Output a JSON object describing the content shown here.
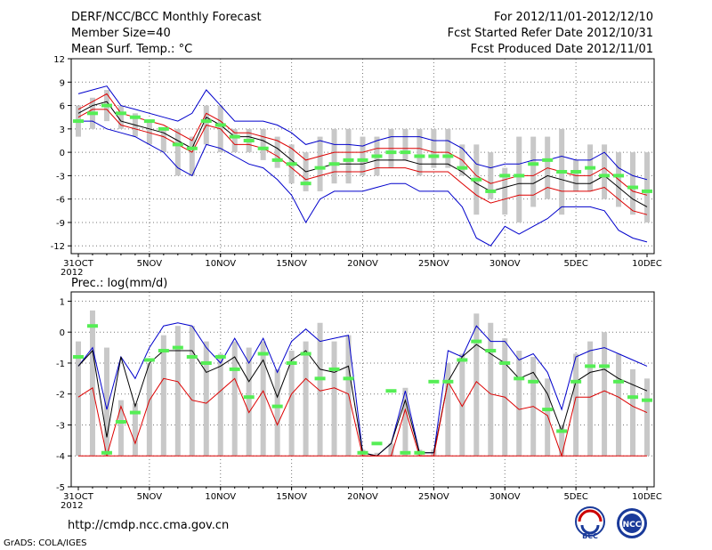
{
  "header": {
    "left_line1": "DERF/NCC/BCC Monthly Forecast",
    "left_line2": "Member Size=40",
    "left_line3": "Mean Surf. Temp.: °C",
    "right_line1": "For 2012/11/01-2012/12/10",
    "right_line2": "Fcst Started Refer Date 2012/10/31",
    "right_line3": "Fcst Produced Date 2012/11/01"
  },
  "panel2_title": "Prec.: log(mm/d)",
  "footer": {
    "url": "http://cmdp.ncc.cma.gov.cn",
    "grads": "GrADS: COLA/IGES",
    "logo1_text": "BCC",
    "logo2_text": "NCC"
  },
  "colors": {
    "bar": "#c8c8c8",
    "green": "#55ee55",
    "mean": "#000000",
    "inner": "#dd0000",
    "outer": "#0000cc"
  },
  "chart_data": [
    {
      "type": "line",
      "title": "Mean Surf. Temp.: °C",
      "x": [
        0,
        1,
        2,
        3,
        4,
        5,
        6,
        7,
        8,
        9,
        10,
        11,
        12,
        13,
        14,
        15,
        16,
        17,
        18,
        19,
        20,
        21,
        22,
        23,
        24,
        25,
        26,
        27,
        28,
        29,
        30,
        31,
        32,
        33,
        34,
        35,
        36,
        37,
        38,
        39,
        40
      ],
      "xtick_labels": [
        {
          "x": 0,
          "label": "31OCT"
        },
        {
          "x": 5,
          "label": "5NOV"
        },
        {
          "x": 10,
          "label": "10NOV"
        },
        {
          "x": 15,
          "label": "15NOV"
        },
        {
          "x": 20,
          "label": "20NOV"
        },
        {
          "x": 25,
          "label": "25NOV"
        },
        {
          "x": 30,
          "label": "30NOV"
        },
        {
          "x": 35,
          "label": "5DEC"
        },
        {
          "x": 40,
          "label": "10DEC"
        }
      ],
      "year_label": "2012",
      "yticks": [
        12,
        9,
        6,
        3,
        0,
        -3,
        -6,
        -9,
        -12
      ],
      "ylim": [
        -13,
        12
      ],
      "grid": true,
      "bars": [
        [
          2,
          6
        ],
        [
          3,
          7
        ],
        [
          4,
          8
        ],
        [
          3,
          6
        ],
        [
          2,
          5
        ],
        [
          1,
          4
        ],
        [
          0,
          3
        ],
        [
          -3,
          3
        ],
        [
          -3,
          2
        ],
        [
          1,
          6
        ],
        [
          0,
          6
        ],
        [
          0,
          3
        ],
        [
          0,
          3
        ],
        [
          -1,
          3
        ],
        [
          -2,
          2
        ],
        [
          -4,
          1
        ],
        [
          -5,
          0
        ],
        [
          -5,
          2
        ],
        [
          -4,
          3
        ],
        [
          -4,
          3
        ],
        [
          -3,
          2
        ],
        [
          -3,
          2
        ],
        [
          -2,
          3
        ],
        [
          -1,
          3
        ],
        [
          -3,
          3
        ],
        [
          -2,
          3
        ],
        [
          -2,
          3
        ],
        [
          -3,
          1
        ],
        [
          -8,
          1
        ],
        [
          -6,
          0
        ],
        [
          -8,
          -2
        ],
        [
          -9,
          2
        ],
        [
          -7,
          2
        ],
        [
          -6,
          2
        ],
        [
          -8,
          3
        ],
        [
          -5,
          -1
        ],
        [
          -5,
          1
        ],
        [
          -6,
          1
        ],
        [
          -7,
          0
        ],
        [
          -8,
          0
        ],
        [
          -9,
          0
        ]
      ],
      "series": [
        {
          "name": "upper",
          "role": "outer",
          "values": [
            7.5,
            8.0,
            8.5,
            6.0,
            5.5,
            5.0,
            4.5,
            4.0,
            5.0,
            8.0,
            6.0,
            4.0,
            4.0,
            4.0,
            3.5,
            2.5,
            1.0,
            1.5,
            1.0,
            1.0,
            0.8,
            1.5,
            2.0,
            2.0,
            2.0,
            1.5,
            1.5,
            0.5,
            -1.5,
            -2.0,
            -1.5,
            -1.5,
            -1.0,
            -1.0,
            -0.5,
            -1.0,
            -1.0,
            0.0,
            -2.0,
            -3.0,
            -3.5
          ]
        },
        {
          "name": "q75",
          "role": "inner",
          "values": [
            5.5,
            6.5,
            7.5,
            5.0,
            4.5,
            4.0,
            3.5,
            2.5,
            1.5,
            5.0,
            4.0,
            2.5,
            2.5,
            2.0,
            1.5,
            0.5,
            -1.0,
            -0.5,
            0.0,
            0.0,
            0.0,
            0.5,
            0.5,
            0.5,
            0.5,
            0.0,
            0.0,
            -1.0,
            -3.0,
            -4.0,
            -3.5,
            -3.0,
            -3.0,
            -2.0,
            -2.5,
            -3.0,
            -3.0,
            -2.0,
            -3.5,
            -5.0,
            -5.5
          ]
        },
        {
          "name": "mean",
          "role": "mean",
          "values": [
            5.0,
            6.0,
            6.5,
            4.0,
            3.5,
            3.0,
            2.5,
            1.5,
            0.5,
            4.5,
            3.5,
            2.0,
            2.0,
            1.5,
            0.5,
            -1.0,
            -2.5,
            -2.0,
            -1.5,
            -1.5,
            -1.5,
            -1.0,
            -1.0,
            -1.0,
            -1.5,
            -1.5,
            -1.5,
            -2.5,
            -4.0,
            -5.0,
            -4.5,
            -4.0,
            -4.0,
            -3.0,
            -3.5,
            -4.0,
            -4.0,
            -3.0,
            -4.5,
            -6.0,
            -7.0
          ]
        },
        {
          "name": "q25",
          "role": "inner",
          "values": [
            4.5,
            5.5,
            5.5,
            3.5,
            3.0,
            2.5,
            2.0,
            1.0,
            0.0,
            3.5,
            3.0,
            1.0,
            1.0,
            0.5,
            -0.5,
            -2.0,
            -3.5,
            -3.0,
            -2.5,
            -2.5,
            -2.5,
            -2.0,
            -2.0,
            -2.0,
            -2.5,
            -2.5,
            -2.5,
            -4.0,
            -5.5,
            -6.5,
            -6.0,
            -5.5,
            -5.5,
            -4.5,
            -5.0,
            -5.0,
            -5.0,
            -4.5,
            -6.0,
            -7.5,
            -8.0
          ]
        },
        {
          "name": "lower",
          "role": "outer",
          "values": [
            4.0,
            4.0,
            3.0,
            2.5,
            2.0,
            1.0,
            0.0,
            -2.0,
            -3.0,
            1.0,
            0.5,
            -0.5,
            -1.5,
            -2.0,
            -3.5,
            -5.5,
            -9.0,
            -6.0,
            -5.0,
            -5.0,
            -5.0,
            -4.5,
            -4.0,
            -4.0,
            -5.0,
            -5.0,
            -5.0,
            -7.0,
            -11.0,
            -12.0,
            -9.5,
            -10.5,
            -9.5,
            -8.5,
            -7.0,
            -7.0,
            -7.0,
            -7.5,
            -10.0,
            -11.0,
            -11.5
          ]
        }
      ],
      "green_marks": [
        4.0,
        5.0,
        6.0,
        5.0,
        4.5,
        4.0,
        3.0,
        1.0,
        0.5,
        4.0,
        3.5,
        2.0,
        1.5,
        0.5,
        -1.0,
        -1.5,
        -4.0,
        -2.0,
        -1.5,
        -1.0,
        -1.0,
        -0.5,
        0.0,
        0.0,
        -0.5,
        -0.5,
        -0.5,
        -2.0,
        -3.5,
        -5.0,
        -3.0,
        -3.0,
        -1.5,
        -1.0,
        -2.5,
        -2.5,
        -2.0,
        -3.0,
        -3.0,
        -4.5,
        -5.0
      ]
    },
    {
      "type": "line",
      "title": "Prec.: log(mm/d)",
      "x": [
        0,
        1,
        2,
        3,
        4,
        5,
        6,
        7,
        8,
        9,
        10,
        11,
        12,
        13,
        14,
        15,
        16,
        17,
        18,
        19,
        20,
        21,
        22,
        23,
        24,
        25,
        26,
        27,
        28,
        29,
        30,
        31,
        32,
        33,
        34,
        35,
        36,
        37,
        38,
        39,
        40
      ],
      "xtick_labels": [
        {
          "x": 0,
          "label": "31OCT"
        },
        {
          "x": 5,
          "label": "5NOV"
        },
        {
          "x": 10,
          "label": "10NOV"
        },
        {
          "x": 15,
          "label": "15NOV"
        },
        {
          "x": 20,
          "label": "20NOV"
        },
        {
          "x": 25,
          "label": "25NOV"
        },
        {
          "x": 30,
          "label": "30NOV"
        },
        {
          "x": 35,
          "label": "5DEC"
        },
        {
          "x": 40,
          "label": "10DEC"
        }
      ],
      "year_label": "2012",
      "yticks": [
        1,
        0,
        -1,
        -2,
        -3,
        -4,
        -5
      ],
      "ylim": [
        -5,
        1.3
      ],
      "grid": true,
      "bar_base": -4,
      "bars": [
        -0.3,
        0.7,
        -0.5,
        -2.2,
        -2.3,
        -1.0,
        -0.1,
        0.2,
        0.2,
        -0.3,
        -0.7,
        -0.3,
        -0.5,
        -0.3,
        -1.2,
        -0.6,
        -0.3,
        0.3,
        -0.3,
        -0.1,
        -3.8,
        -3.9,
        -3.6,
        -1.8,
        -3.8,
        -3.8,
        -1.0,
        -0.7,
        0.6,
        0.3,
        -0.2,
        -0.6,
        -0.8,
        -1.5,
        -3.0,
        -0.7,
        -0.3,
        0.0,
        -0.7,
        -1.2,
        -1.5
      ],
      "series": [
        {
          "name": "upper",
          "role": "outer",
          "values": [
            -1.1,
            -0.5,
            -2.5,
            -0.8,
            -1.5,
            -0.5,
            0.2,
            0.3,
            0.2,
            -0.5,
            -1.0,
            -0.2,
            -1.0,
            -0.2,
            -1.3,
            -0.3,
            0.1,
            -0.3,
            -0.2,
            -0.1,
            -3.9,
            -4.0,
            -3.6,
            -1.9,
            -3.9,
            -3.9,
            -0.6,
            -0.8,
            0.2,
            -0.3,
            -0.3,
            -0.9,
            -0.7,
            -1.3,
            -2.5,
            -0.8,
            -0.6,
            -0.5,
            -0.7,
            -0.9,
            -1.1
          ]
        },
        {
          "name": "mean",
          "role": "mean",
          "values": [
            -1.1,
            -0.6,
            -3.4,
            -0.8,
            -2.4,
            -1.0,
            -0.6,
            -0.6,
            -0.6,
            -1.3,
            -1.1,
            -0.8,
            -1.6,
            -0.9,
            -2.1,
            -0.9,
            -0.6,
            -1.2,
            -1.3,
            -1.1,
            -3.9,
            -4.0,
            -3.6,
            -2.2,
            -3.9,
            -3.9,
            -1.6,
            -0.8,
            -0.4,
            -0.7,
            -1.0,
            -1.5,
            -1.3,
            -2.0,
            -3.2,
            -1.6,
            -1.3,
            -1.2,
            -1.5,
            -1.7,
            -1.9
          ]
        },
        {
          "name": "lower",
          "role": "inner",
          "values": [
            -2.1,
            -1.8,
            -4.0,
            -2.4,
            -3.6,
            -2.2,
            -1.5,
            -1.6,
            -2.2,
            -2.3,
            -1.9,
            -1.5,
            -2.6,
            -1.9,
            -3.0,
            -2.0,
            -1.5,
            -1.9,
            -1.8,
            -2.0,
            -4.0,
            -4.0,
            -4.0,
            -2.5,
            -4.0,
            -4.0,
            -1.6,
            -2.4,
            -1.6,
            -2.0,
            -2.1,
            -2.5,
            -2.4,
            -2.7,
            -4.0,
            -2.1,
            -2.1,
            -1.9,
            -2.1,
            -2.4,
            -2.6
          ]
        },
        {
          "name": "floor",
          "role": "inner",
          "values": [
            -4,
            -4,
            -4,
            -4,
            -4,
            -4,
            -4,
            -4,
            -4,
            -4,
            -4,
            -4,
            -4,
            -4,
            -4,
            -4,
            -4,
            -4,
            -4,
            -4,
            -4,
            -4,
            -4,
            -4,
            -4,
            -4,
            -4,
            -4,
            -4,
            -4,
            -4,
            -4,
            -4,
            -4,
            -4,
            -4,
            -4,
            -4,
            -4,
            -4,
            -4
          ]
        }
      ],
      "green_marks": [
        -0.8,
        0.2,
        -3.9,
        -2.9,
        -2.6,
        -0.9,
        -0.6,
        -0.5,
        -0.8,
        -1.0,
        -0.8,
        -1.2,
        -2.1,
        -0.7,
        -2.4,
        -1.0,
        -0.7,
        -1.5,
        -1.2,
        -1.5,
        -3.9,
        -3.6,
        -1.9,
        -3.9,
        -3.9,
        -1.6,
        -1.6,
        -0.9,
        -0.3,
        -0.6,
        -1.0,
        -1.5,
        -1.6,
        -2.5,
        -3.2,
        -1.6,
        -1.1,
        -1.1,
        -1.6,
        -2.1,
        -2.2
      ]
    }
  ]
}
